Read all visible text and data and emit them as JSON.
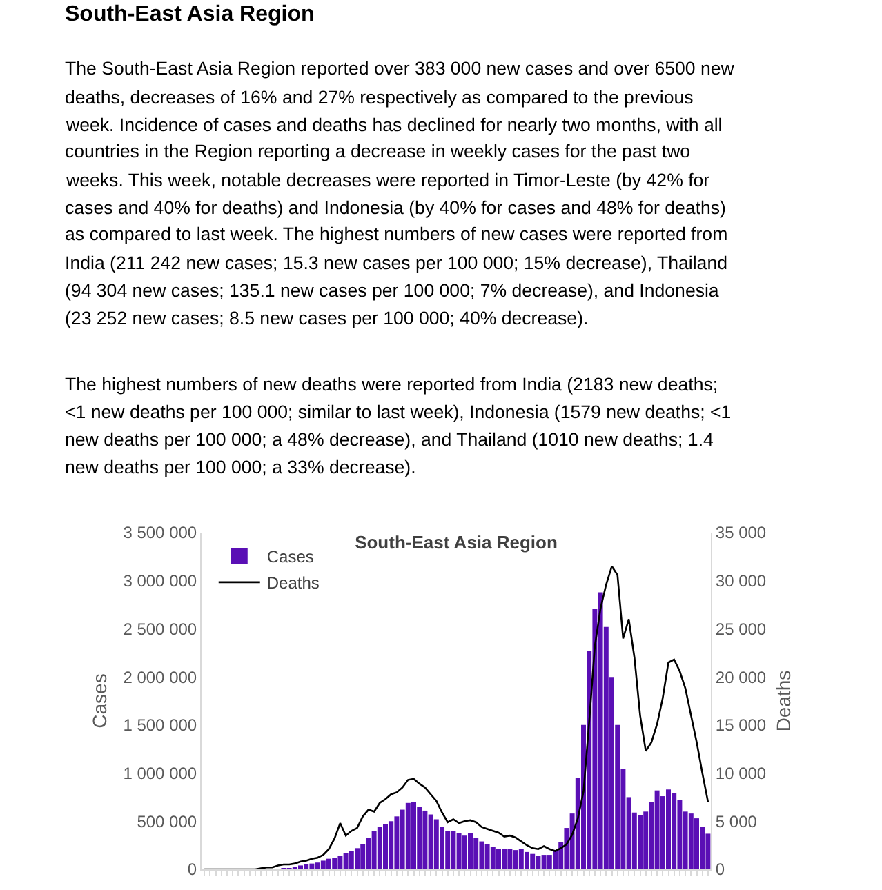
{
  "chart_data": {
    "type": "bar",
    "title": "South-East Asia Region",
    "annotations": [
      "South-East Asia Region",
      "The South-East Asia Region reported over 383 000 new cases and over 6500 new\ndeaths, decreases of 16% and 27% respectively as compared to the previous\nweek. Incidence of cases and deaths has declined for nearly two months, with all\ncountries in the Region reporting a decrease in weekly cases for the past two\nweeks. This week, notable decreases were reported in Timor-Leste (by 42% for\ncases and 40% for deaths) and Indonesia (by 40% for cases and 48% for deaths)\nas compared to last week. The highest numbers of new cases were reported from\nIndia (211 242 new cases; 15.3 new cases per 100 000; 15% decrease), Thailand\n(94 304 new cases; 135.1 new cases per 100 000; 7% decrease), and Indonesia\n(23 252 new cases; 8.5 new cases per 100 000; 40% decrease).",
      "The highest numbers of new deaths were reported from India (2183 new deaths;\n<1 new deaths per 100 000; similar to last week), Indonesia (1579 new deaths; <1\nnew deaths per 100 000; a 48% decrease), and Thailand (1010 new deaths; 1.4\nnew deaths per 100 000; a 33% decrease)."
    ],
    "ylabel": "Cases",
    "y2label": "Deaths",
    "categories": [
      null,
      null,
      null,
      null,
      null,
      null,
      null,
      null,
      null,
      null,
      null,
      null,
      null,
      null,
      null,
      null,
      null,
      null,
      null,
      null,
      null,
      null,
      null,
      null,
      null,
      null,
      null,
      null,
      null,
      null,
      null,
      null,
      null,
      null,
      null,
      null,
      null,
      null,
      null,
      null,
      null,
      null,
      null,
      null,
      null,
      null,
      null,
      null,
      null,
      null,
      null,
      null,
      null,
      null,
      null,
      null,
      null,
      null,
      null,
      null,
      null,
      null,
      null,
      null,
      null,
      null,
      null,
      null,
      null,
      null,
      null,
      null,
      null,
      null,
      null,
      null,
      null,
      null,
      null,
      null,
      null,
      null,
      null,
      null,
      null,
      null,
      null,
      null,
      null,
      null
    ],
    "series": [
      {
        "name": "Cases",
        "color": "#5a0fb5",
        "values": [
          0,
          0,
          0,
          0,
          0,
          0,
          0,
          0,
          0,
          0,
          0,
          0,
          0,
          0,
          10000,
          10000,
          20000,
          40000,
          50000,
          60000,
          70000,
          90000,
          110000,
          120000,
          140000,
          170000,
          190000,
          220000,
          260000,
          330000,
          400000,
          440000,
          470000,
          500000,
          550000,
          620000,
          690000,
          700000,
          650000,
          610000,
          570000,
          520000,
          440000,
          400000,
          400000,
          380000,
          350000,
          380000,
          330000,
          290000,
          260000,
          230000,
          210000,
          210000,
          210000,
          200000,
          210000,
          180000,
          160000,
          140000,
          150000,
          150000,
          190000,
          280000,
          430000,
          580000,
          950000,
          1500000,
          2270000,
          2710000,
          2880000,
          2520000,
          2000000,
          1500000,
          1040000,
          750000,
          590000,
          560000,
          600000,
          700000,
          820000,
          760000,
          830000,
          790000,
          720000,
          600000,
          580000,
          530000,
          440000,
          370000
        ]
      },
      {
        "name": "Deaths",
        "type": "line",
        "axis": "y2",
        "color": "#000000",
        "values": [
          0,
          0,
          0,
          0,
          0,
          0,
          0,
          0,
          0,
          0,
          100,
          200,
          200,
          400,
          500,
          500,
          600,
          800,
          900,
          1100,
          1200,
          1500,
          2100,
          3200,
          4800,
          3500,
          4000,
          4300,
          5500,
          6200,
          6000,
          6900,
          7300,
          7800,
          8000,
          8500,
          9300,
          9400,
          8900,
          8500,
          7800,
          7100,
          5900,
          4900,
          5200,
          4800,
          5000,
          5100,
          4900,
          4400,
          4200,
          4000,
          3800,
          3400,
          3500,
          3300,
          2900,
          2500,
          2200,
          2100,
          2400,
          2100,
          1900,
          2200,
          2600,
          3600,
          5300,
          8100,
          15300,
          23200,
          27100,
          29600,
          31500,
          30600,
          24000,
          26000,
          22000,
          16000,
          12300,
          13200,
          15100,
          17800,
          21500,
          21800,
          20600,
          18800,
          16000,
          13200,
          10000,
          7000
        ]
      }
    ],
    "ylim": [
      0,
      3500000
    ],
    "yticks": [
      {
        "value": 0,
        "label": "0"
      },
      {
        "value": 500000,
        "label": "500 000"
      },
      {
        "value": 1000000,
        "label": "1 000 000"
      },
      {
        "value": 1500000,
        "label": "1 500 000"
      },
      {
        "value": 2000000,
        "label": "2 000 000"
      },
      {
        "value": 2500000,
        "label": "2 500 000"
      },
      {
        "value": 3000000,
        "label": "3 000 000"
      },
      {
        "value": 3500000,
        "label": "3 500 000"
      }
    ],
    "y2lim": [
      0,
      35000
    ],
    "y2ticks": [
      {
        "value": 0,
        "label": "0"
      },
      {
        "value": 5000,
        "label": "5 000"
      },
      {
        "value": 10000,
        "label": "10 000"
      },
      {
        "value": 15000,
        "label": "15 000"
      },
      {
        "value": 20000,
        "label": "20 000"
      },
      {
        "value": 25000,
        "label": "25 000"
      },
      {
        "value": 30000,
        "label": "30 000"
      },
      {
        "value": 35000,
        "label": "35 000"
      }
    ],
    "legend": "top left",
    "tick_labels": "y"
  }
}
